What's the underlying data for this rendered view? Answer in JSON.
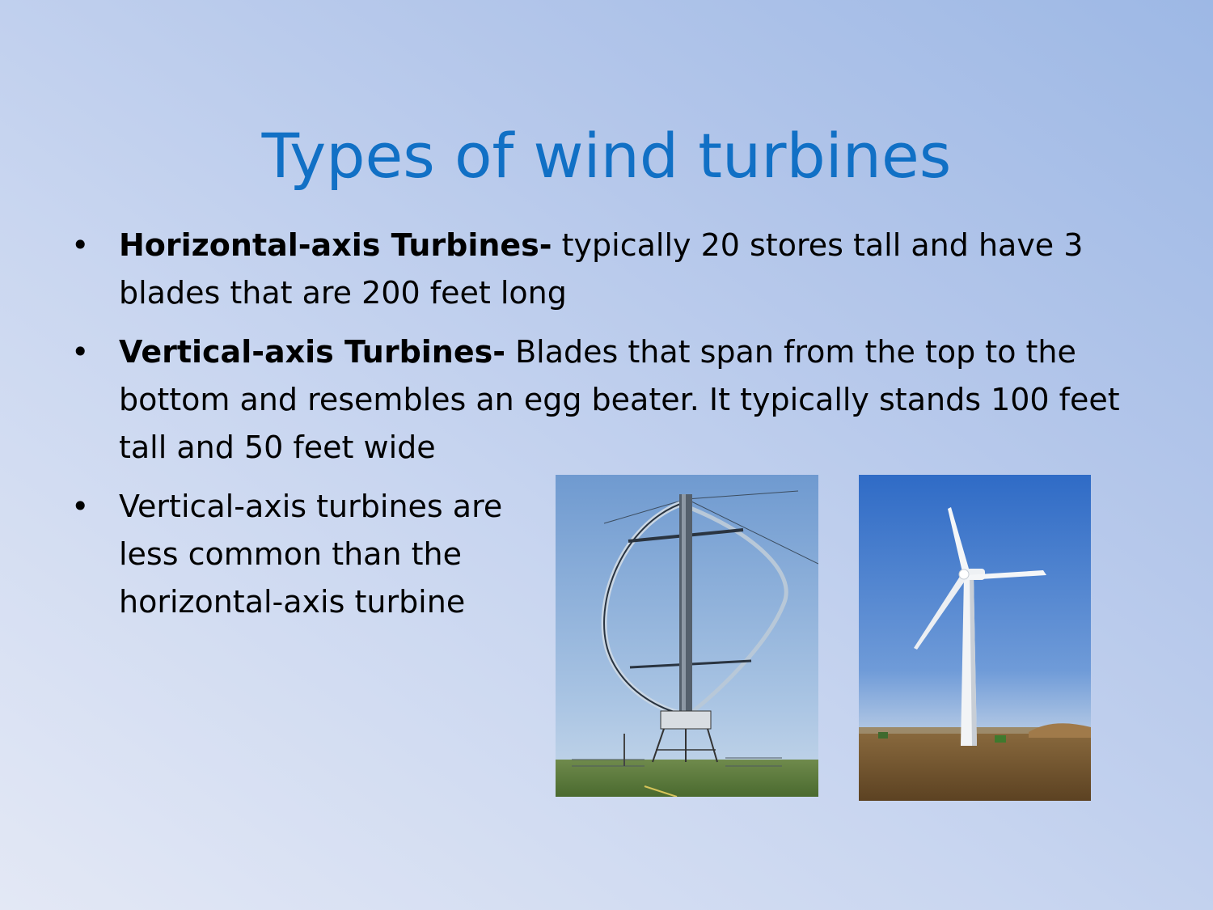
{
  "slide": {
    "title": "Types of wind turbines",
    "title_color": "#1170c5",
    "bullets": [
      {
        "bold": "Horizontal-axis Turbines-",
        "text": " typically 20 stores tall and have 3 blades that are 200 feet long"
      },
      {
        "bold": "Vertical-axis Turbines-",
        "text": " Blades that span from  the top to the bottom and resembles an egg beater. It typically stands 100 feet tall and 50 feet wide"
      },
      {
        "bold": "",
        "text": "Vertical-axis turbines are  less common than the horizontal-axis turbine"
      }
    ],
    "bullet_glyph": "•"
  },
  "images": [
    {
      "name": "vertical-axis-turbine-photo"
    },
    {
      "name": "horizontal-axis-turbine-photo"
    }
  ]
}
